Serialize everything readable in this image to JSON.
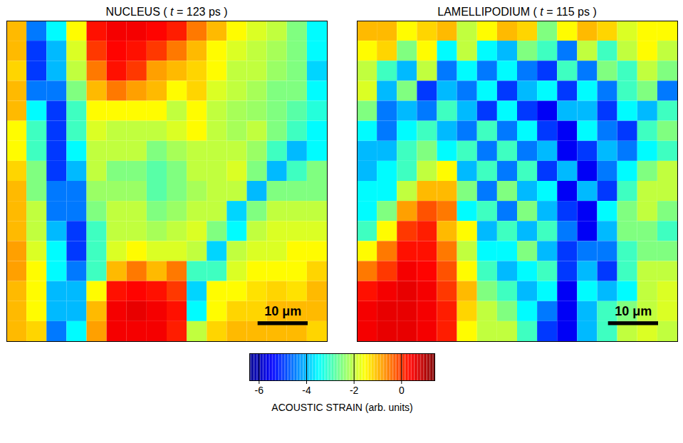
{
  "chart_data": {
    "type": "heatmap",
    "xlim": [
      0,
      64
    ],
    "ylim": [
      0,
      64
    ],
    "tick_labels": false,
    "scale_bar": {
      "length": 10,
      "label": "10 μm"
    },
    "colorbar": {
      "label": "ACOUSTIC STRAIN (arb. units)",
      "range": [
        -6.4,
        1.4
      ],
      "ticks": [
        -6,
        -4,
        -2,
        0
      ]
    },
    "panels": [
      {
        "title": "NUCLEUS ( t = 123 ps )",
        "cells": [
          [
            -1,
            -4.5,
            -3.5,
            -1.5,
            0.3,
            0.5,
            0.5,
            0.4,
            0.2,
            -0.5,
            -1,
            -1.5,
            -1.8,
            -2,
            -2.5,
            -3.5
          ],
          [
            -1,
            -5,
            -4,
            -1.8,
            0,
            0.4,
            0.3,
            0,
            -0.5,
            -1,
            -1.5,
            -1.8,
            -2,
            -2.2,
            -2.5,
            -3.5
          ],
          [
            -1.2,
            -5,
            -4,
            -2,
            -0.5,
            0.3,
            0,
            -0.8,
            -1,
            -1.2,
            -1.5,
            -2,
            -2,
            -2.3,
            -2.5,
            -3.8
          ],
          [
            -1,
            -4.5,
            -4.5,
            -2.5,
            -1,
            -0.5,
            -0.8,
            -1,
            -1.5,
            -1.2,
            -1.8,
            -2,
            -2.2,
            -2.5,
            -2.5,
            -3.5
          ],
          [
            -1,
            -3.5,
            -5,
            -3,
            -1.5,
            -1.5,
            -1.5,
            -1.5,
            -2,
            -1.5,
            -2,
            -2.2,
            -2.3,
            -2.5,
            -2.8,
            -3.2
          ],
          [
            -1.5,
            -3,
            -5,
            -3,
            -1.8,
            -2,
            -2,
            -2,
            -1.8,
            -1.5,
            -2,
            -2.2,
            -2,
            -2.5,
            -3,
            -3.5
          ],
          [
            -1.5,
            -3,
            -5,
            -3.5,
            -2,
            -2,
            -2,
            -2.5,
            -2.2,
            -2,
            -2,
            -2,
            -2.3,
            -3,
            -4,
            -3.5
          ],
          [
            -1.2,
            -2.5,
            -5,
            -4,
            -2,
            -2.5,
            -2.5,
            -2.8,
            -2.5,
            -2,
            -2,
            -1.8,
            -2.5,
            -4,
            -3,
            -2.5
          ],
          [
            -1,
            -2.5,
            -4.5,
            -4.5,
            -2.3,
            -2.3,
            -2.3,
            -2.8,
            -2.5,
            -2.2,
            -2,
            -2,
            -4,
            -2.5,
            -2.5,
            -2.5
          ],
          [
            -1,
            -2,
            -4.5,
            -4.5,
            -2.5,
            -2,
            -2,
            -2.5,
            -2.3,
            -2,
            -2,
            -3.8,
            -2.5,
            -2,
            -2,
            -2
          ],
          [
            -1,
            -2,
            -4,
            -5,
            -3,
            -2,
            -2,
            -2.2,
            -2,
            -1.8,
            -2.5,
            -3.5,
            -2,
            -1.8,
            -1.8,
            -1.8
          ],
          [
            -0.8,
            -1.8,
            -3.5,
            -5,
            -3,
            -1.8,
            -1.5,
            -1.8,
            -1.8,
            -2,
            -3.8,
            -2,
            -1.8,
            -1.8,
            -1.5,
            -1.5
          ],
          [
            -0.8,
            -1.5,
            -3.5,
            -4.5,
            -3,
            -1,
            -0.5,
            -1,
            -0.5,
            -3,
            -3,
            -1.8,
            -1.5,
            -1.5,
            -1.5,
            -1.2
          ],
          [
            -1,
            -1.5,
            -4,
            -4,
            -1.5,
            0.3,
            0.4,
            0.3,
            0,
            -3.8,
            -1.5,
            -1.5,
            -1.3,
            -1.2,
            -1.3,
            -1
          ],
          [
            -1,
            -1.5,
            -4,
            -4,
            -1,
            0.5,
            0.6,
            0.5,
            0.3,
            -3.5,
            -1.5,
            -1.2,
            -1.2,
            -1,
            -1,
            -1
          ],
          [
            -1,
            -1.2,
            -4.5,
            -3.5,
            -0.8,
            0.5,
            0.5,
            0.5,
            0.2,
            -2,
            -1.2,
            -1,
            -1,
            -1,
            -1,
            -1.2
          ]
        ]
      },
      {
        "title": "LAMELLIPODIUM ( t = 115 ps )",
        "cells": [
          [
            -1,
            -1,
            -1.5,
            -1.2,
            -1,
            -2,
            -1.5,
            -1,
            -1.2,
            -2.5,
            -1.5,
            -1,
            -1.2,
            -1.8,
            -1.5,
            -1.5
          ],
          [
            -1.5,
            -1.2,
            -2.5,
            -1.5,
            -3.5,
            -2,
            -3.5,
            -4,
            -2.5,
            -3,
            -4.5,
            -2,
            -3,
            -2,
            -1.5,
            -2
          ],
          [
            -2,
            -3,
            -4,
            -2,
            -4.5,
            -3.5,
            -4.5,
            -3.5,
            -4.5,
            -5,
            -3,
            -4.5,
            -2.5,
            -3,
            -2,
            -2.5
          ],
          [
            -1.8,
            -4,
            -2.5,
            -5,
            -4,
            -4.5,
            -3.5,
            -5,
            -4,
            -3.5,
            -5,
            -3.5,
            -4.5,
            -3,
            -2.5,
            -4.5
          ],
          [
            -2.5,
            -4.5,
            -4,
            -4.5,
            -3,
            -4,
            -5,
            -3.5,
            -5,
            -5.5,
            -4,
            -4,
            -5,
            -3.5,
            -4,
            -3
          ],
          [
            -3.5,
            -4.5,
            -3.5,
            -3,
            -4,
            -4.5,
            -3,
            -4.5,
            -3.5,
            -5,
            -5.5,
            -3.5,
            -4.5,
            -5,
            -3,
            -2.5
          ],
          [
            -4,
            -4,
            -3,
            -2.5,
            -3.5,
            -3,
            -4.5,
            -3,
            -4.5,
            -4,
            -5.5,
            -5,
            -4,
            -4.5,
            -3.5,
            -3
          ],
          [
            -4,
            -3.5,
            -3,
            -2,
            -1.5,
            -4,
            -3,
            -4.5,
            -3,
            -5,
            -4,
            -5.5,
            -4.5,
            -3.5,
            -2.5,
            -2
          ],
          [
            -3.5,
            -3.5,
            -2,
            -1,
            -1,
            -2.5,
            -4.5,
            -2.5,
            -4,
            -3.5,
            -5.5,
            -4,
            -5,
            -3,
            -2,
            -2
          ],
          [
            -3.5,
            -2.5,
            -0.8,
            -0.2,
            -0.5,
            -3.5,
            -3,
            -4.5,
            -2.5,
            -4,
            -5,
            -5.5,
            -3.5,
            -2.5,
            -2,
            -2.5
          ],
          [
            -3,
            -1.5,
            0,
            0.2,
            -1,
            -1.5,
            -4,
            -3,
            -4,
            -3,
            -4.5,
            -5.5,
            -4,
            -2.5,
            -2.5,
            -3
          ],
          [
            -1.5,
            -0.5,
            0.3,
            0.3,
            -0.5,
            -2,
            -3.5,
            -3.5,
            -2.5,
            -4,
            -5,
            -4.5,
            -4.5,
            -3,
            -2.5,
            -2.5
          ],
          [
            -0.5,
            0,
            0.5,
            0.4,
            -0.2,
            -1.5,
            -3,
            -4,
            -3.5,
            -3,
            -5,
            -4,
            -5,
            -3,
            -2,
            -2
          ],
          [
            0.3,
            0.5,
            0.6,
            0.5,
            0,
            -1,
            -2.5,
            -3,
            -4,
            -3.5,
            -5.5,
            -3.5,
            -4,
            -3.5,
            -2,
            -1.8
          ],
          [
            0.5,
            0.6,
            0.6,
            0.5,
            0.2,
            -1.2,
            -2,
            -2.5,
            -3.5,
            -4.5,
            -5.5,
            -4,
            -3,
            -2.5,
            -2,
            -1.8
          ],
          [
            0.5,
            0.6,
            0.6,
            0.5,
            0.2,
            -1.5,
            -2,
            -2,
            -3,
            -5,
            -5.5,
            -4,
            -3,
            -2,
            -1.8,
            -2
          ]
        ]
      }
    ]
  }
}
